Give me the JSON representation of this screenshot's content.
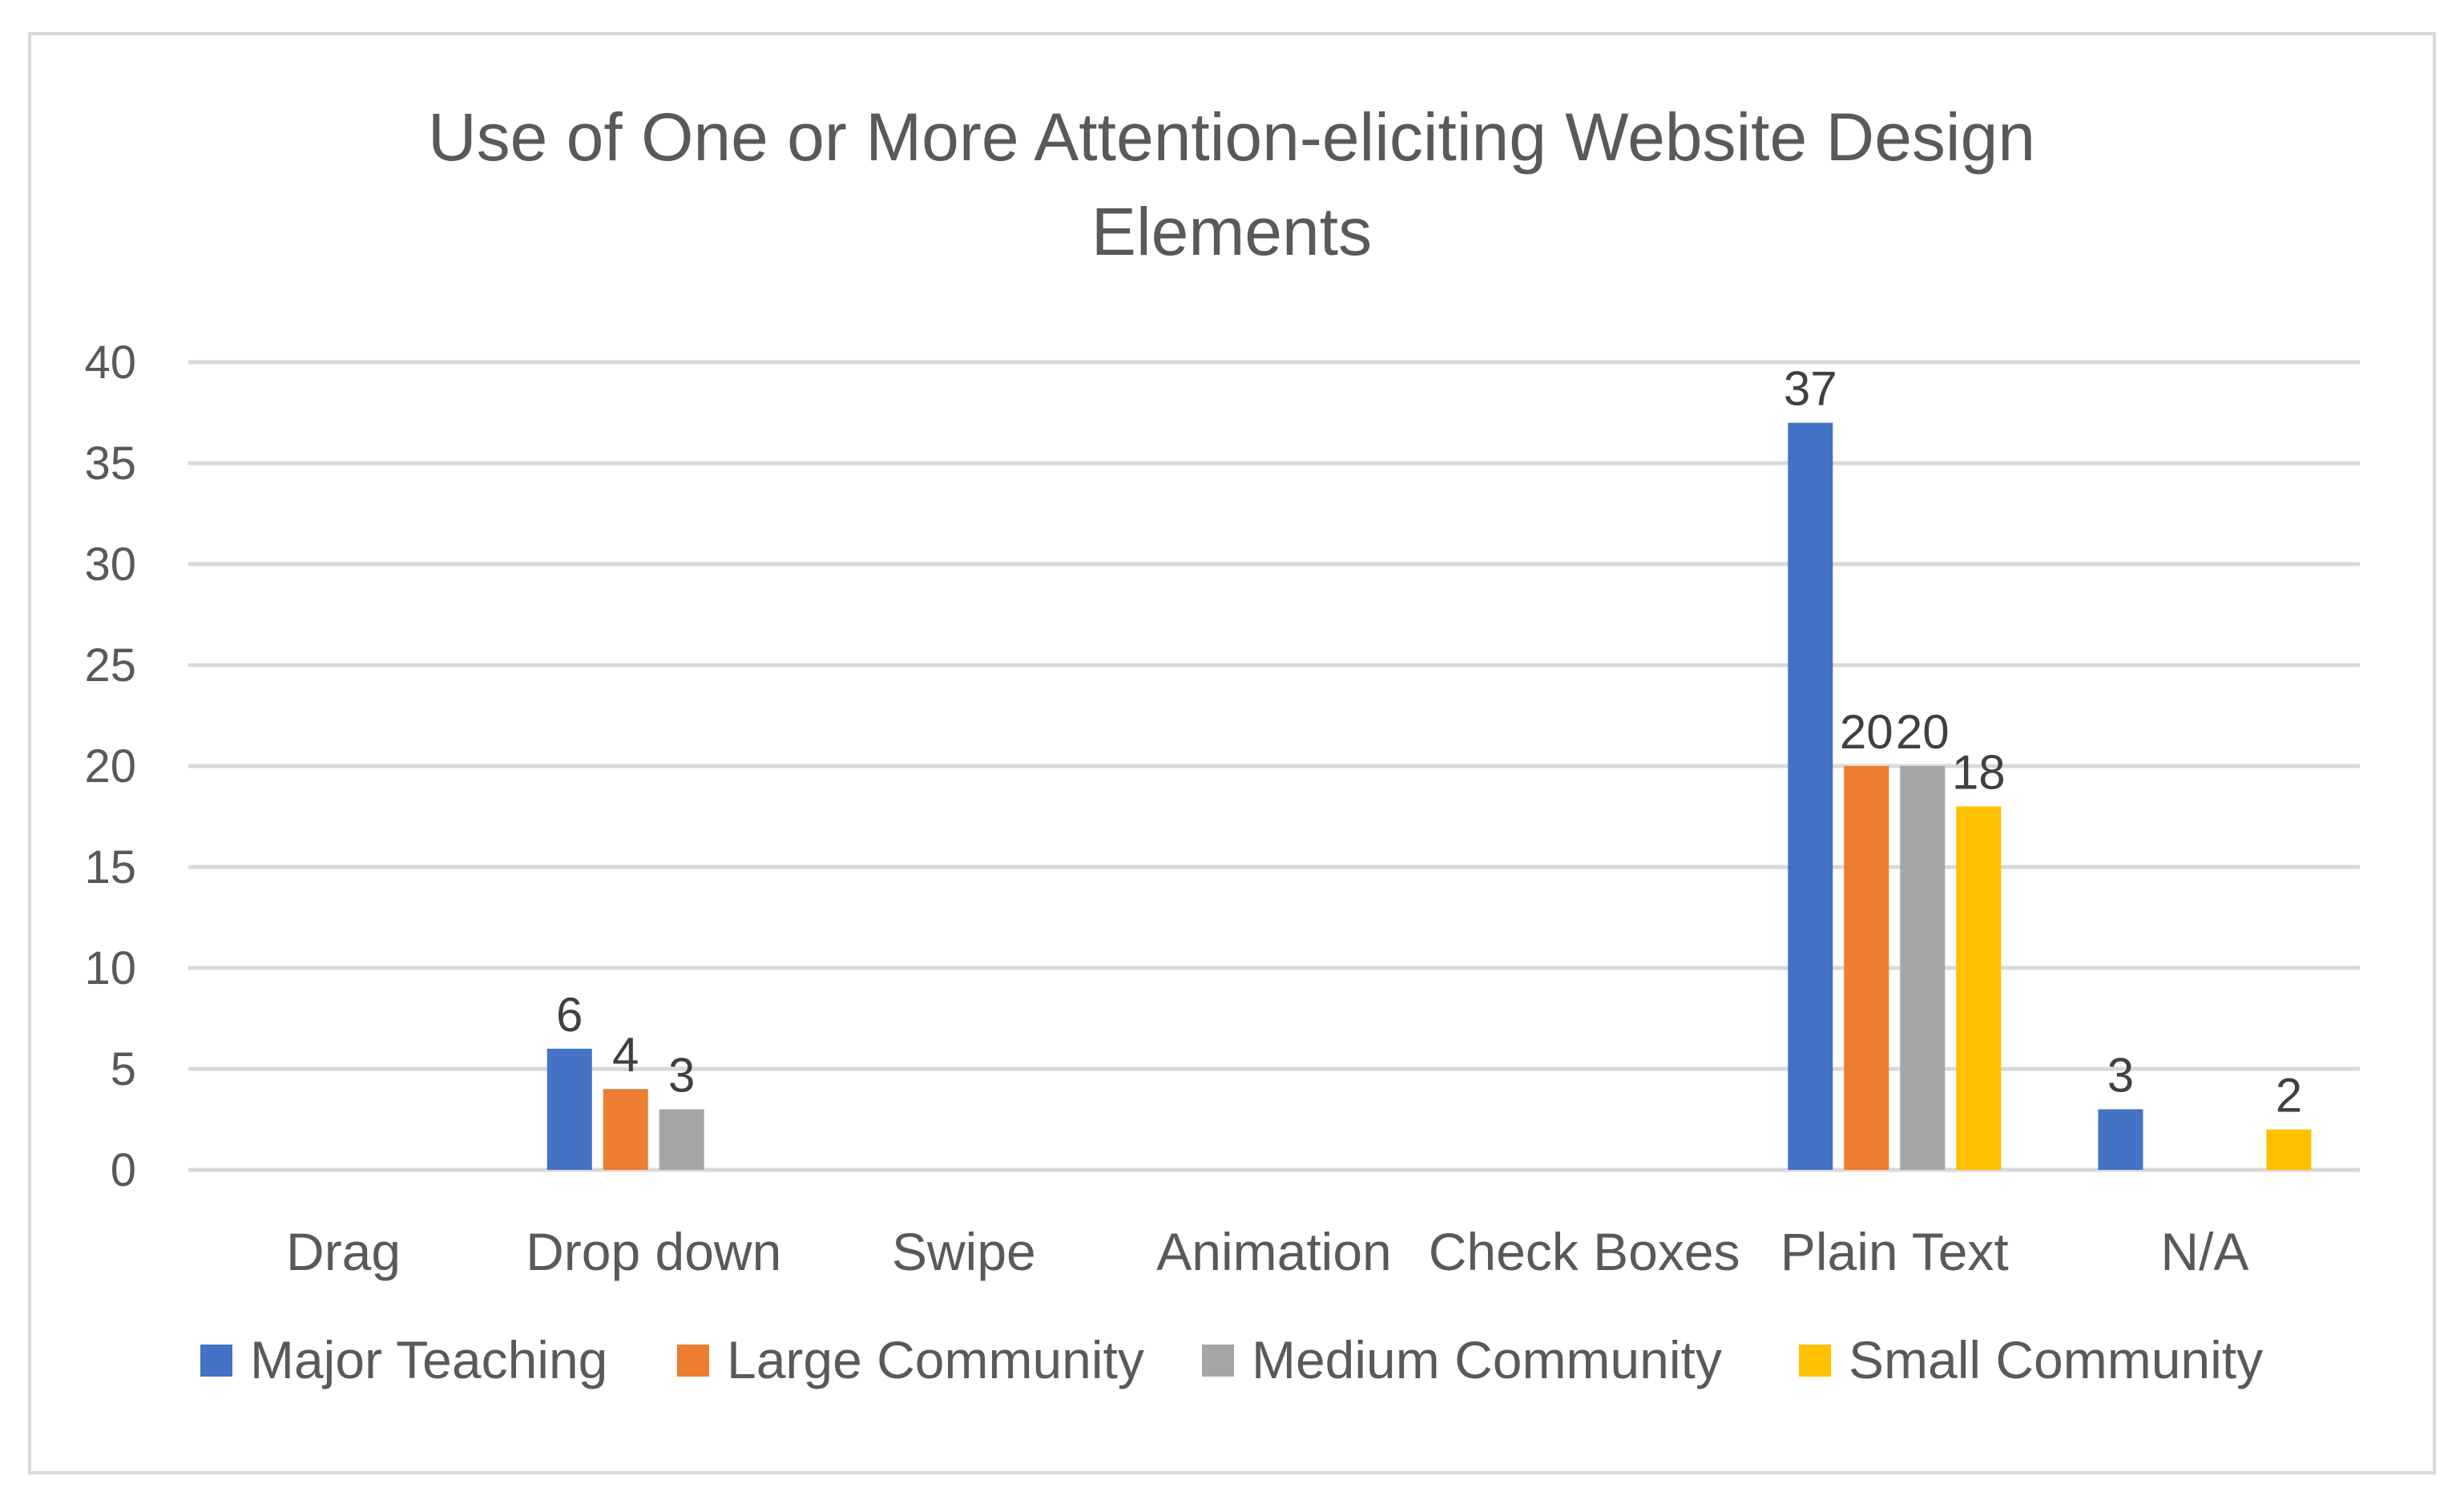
{
  "chart_data": {
    "type": "bar",
    "title_lines": [
      "Use of One or More Attention-eliciting Website Design",
      "Elements"
    ],
    "categories": [
      "Drag",
      "Drop down",
      "Swipe",
      "Animation",
      "Check Boxes",
      "Plain Text",
      "N/A"
    ],
    "series": [
      {
        "name": "Major Teaching",
        "color": "#4472C4",
        "values": [
          null,
          6,
          null,
          null,
          null,
          37,
          3
        ]
      },
      {
        "name": "Large Community",
        "color": "#ED7D31",
        "values": [
          null,
          4,
          null,
          null,
          null,
          20,
          null
        ]
      },
      {
        "name": "Medium Community",
        "color": "#A5A5A5",
        "values": [
          null,
          3,
          null,
          null,
          null,
          20,
          null
        ]
      },
      {
        "name": "Small Community",
        "color": "#FFC000",
        "values": [
          null,
          null,
          null,
          null,
          null,
          18,
          2
        ]
      }
    ],
    "ylim": [
      0,
      40
    ],
    "yticks": [
      "0",
      "5",
      "10",
      "15",
      "20",
      "25",
      "30",
      "35",
      "40"
    ],
    "grid": true,
    "legend": "bottom",
    "xlabel": "",
    "ylabel": ""
  }
}
